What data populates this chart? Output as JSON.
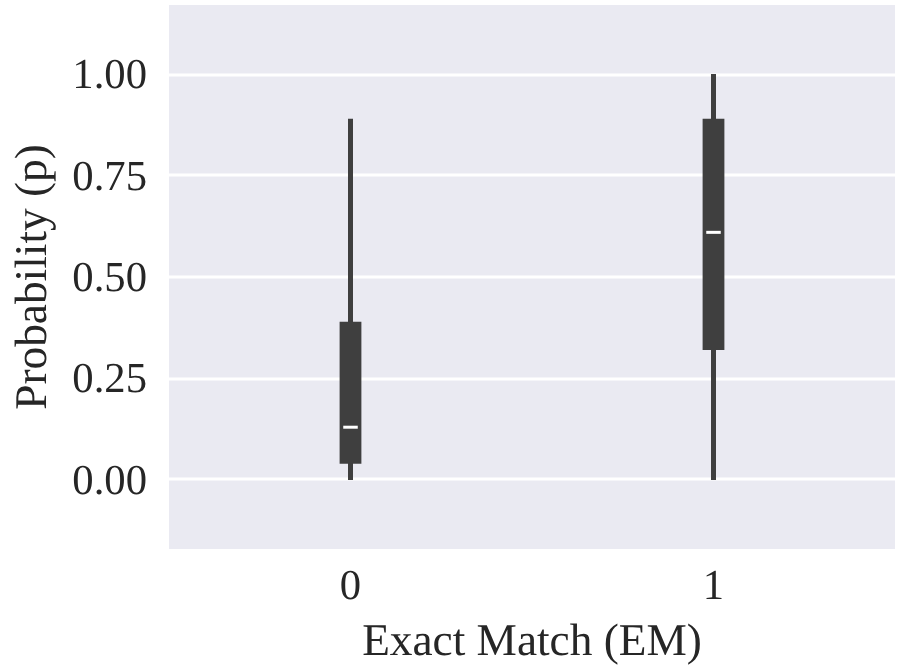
{
  "chart_data": {
    "type": "box",
    "xlabel": "Exact Match (EM)",
    "ylabel": "Probability (p)",
    "categories": [
      "0",
      "1"
    ],
    "boxes": [
      {
        "low": 0.0,
        "q1": 0.04,
        "median": 0.13,
        "q3": 0.39,
        "high": 0.89
      },
      {
        "low": 0.0,
        "q1": 0.32,
        "median": 0.61,
        "q3": 0.89,
        "high": 1.0
      }
    ],
    "color": "#3f3f3f",
    "ylim": [
      -0.17,
      1.17
    ],
    "yticks": [
      {
        "value": 0,
        "label": "0.00"
      },
      {
        "value": 0.25,
        "label": "0.25"
      },
      {
        "value": 0.5,
        "label": "0.50"
      },
      {
        "value": 0.75,
        "label": "0.75"
      },
      {
        "value": 1,
        "label": "1.00"
      }
    ],
    "grid": "y"
  }
}
